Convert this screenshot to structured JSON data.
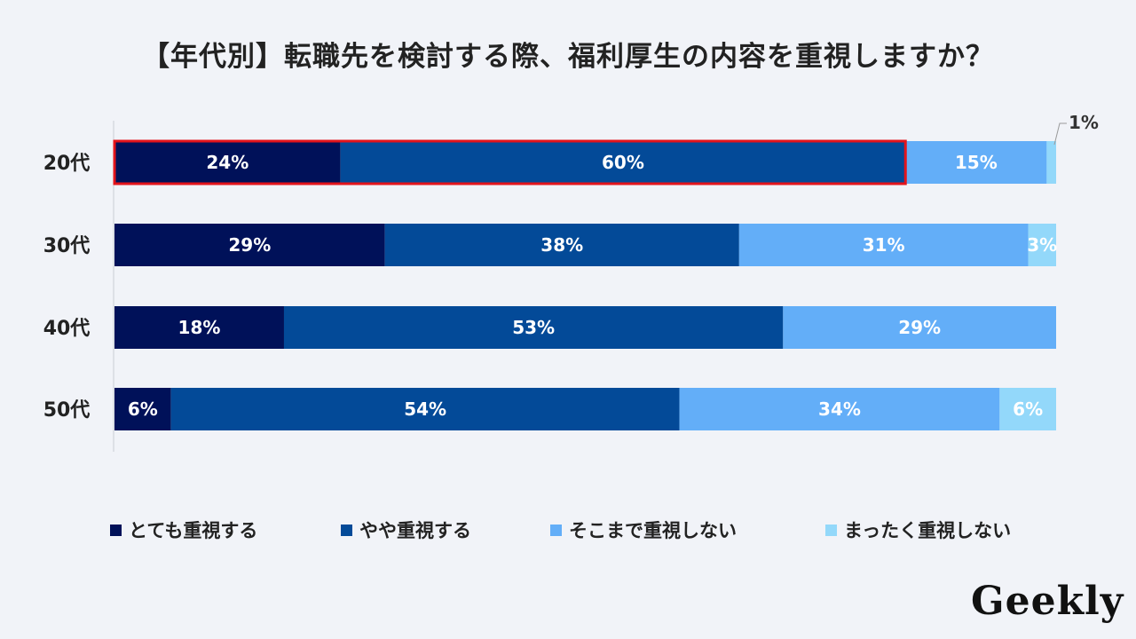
{
  "title": "【年代別】転職先を検討する際、福利厚生の内容を重視しますか？",
  "logo": "Geekly",
  "legend": [
    {
      "label": "とても重視する",
      "color": "#001159"
    },
    {
      "label": "やや重視する",
      "color": "#034a98"
    },
    {
      "label": "そこまで重視しない",
      "color": "#63aef8"
    },
    {
      "label": "まったく重視しない",
      "color": "#93d8fa"
    }
  ],
  "chart_data": {
    "type": "bar",
    "orientation": "horizontal",
    "stacked": true,
    "title": "【年代別】転職先を検討する際、福利厚生の内容を重視しますか？",
    "categories": [
      "20代",
      "30代",
      "40代",
      "50代"
    ],
    "series": [
      {
        "name": "とても重視する",
        "values": [
          24,
          29,
          18,
          6
        ],
        "labels": [
          "24%",
          "29%",
          "18%",
          "6%"
        ],
        "color": "#001159"
      },
      {
        "name": "やや重視する",
        "values": [
          60,
          38,
          53,
          54
        ],
        "labels": [
          "60%",
          "38%",
          "53%",
          "54%"
        ],
        "color": "#034a98"
      },
      {
        "name": "そこまで重視しない",
        "values": [
          15,
          31,
          29,
          34
        ],
        "labels": [
          "15%",
          "31%",
          "29%",
          "34%"
        ],
        "color": "#63aef8"
      },
      {
        "name": "まったく重視しない",
        "values": [
          1,
          3,
          0,
          6
        ],
        "labels": [
          "1%",
          "3%",
          "",
          "6%"
        ],
        "color": "#93d8fa"
      }
    ],
    "highlight": {
      "category_index": 0,
      "series_indices": [
        0,
        1
      ],
      "color": "#e3141b"
    },
    "xlim": [
      0,
      100
    ],
    "grid": false,
    "legend_position": "bottom"
  }
}
